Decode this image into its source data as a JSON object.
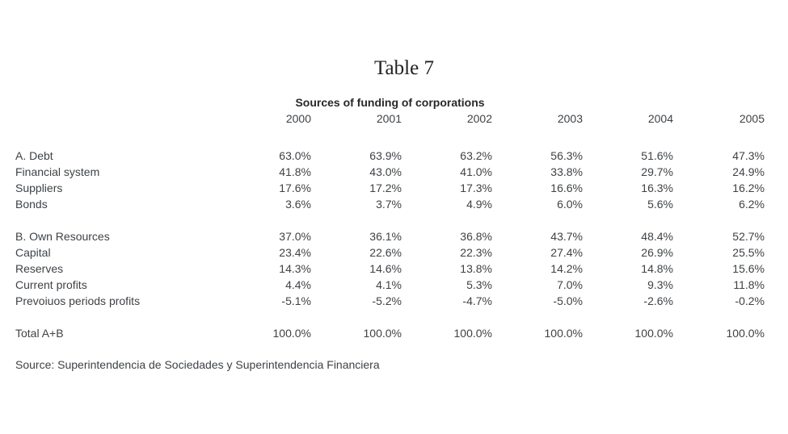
{
  "document": {
    "title": "Table 7",
    "source": "Source: Superintendencia de Sociedades y Superintendencia Financiera"
  },
  "chart_data": {
    "type": "table",
    "title": "Sources of funding of corporations",
    "columns": [
      "2000",
      "2001",
      "2002",
      "2003",
      "2004",
      "2005"
    ],
    "sections": [
      {
        "rows": [
          {
            "label": "A. Debt",
            "indent": 0,
            "values": [
              "63.0%",
              "63.9%",
              "63.2%",
              "56.3%",
              "51.6%",
              "47.3%"
            ]
          },
          {
            "label": "Financial system",
            "indent": 1,
            "values": [
              "41.8%",
              "43.0%",
              "41.0%",
              "33.8%",
              "29.7%",
              "24.9%"
            ]
          },
          {
            "label": "Suppliers",
            "indent": 1,
            "values": [
              "17.6%",
              "17.2%",
              "17.3%",
              "16.6%",
              "16.3%",
              "16.2%"
            ]
          },
          {
            "label": "Bonds",
            "indent": 1,
            "values": [
              "3.6%",
              "3.7%",
              "4.9%",
              "6.0%",
              "5.6%",
              "6.2%"
            ]
          }
        ]
      },
      {
        "rows": [
          {
            "label": "B. Own Resources",
            "indent": 0,
            "values": [
              "37.0%",
              "36.1%",
              "36.8%",
              "43.7%",
              "48.4%",
              "52.7%"
            ]
          },
          {
            "label": "Capital",
            "indent": 1,
            "values": [
              "23.4%",
              "22.6%",
              "22.3%",
              "27.4%",
              "26.9%",
              "25.5%"
            ]
          },
          {
            "label": "Reserves",
            "indent": 1,
            "values": [
              "14.3%",
              "14.6%",
              "13.8%",
              "14.2%",
              "14.8%",
              "15.6%"
            ]
          },
          {
            "label": "Current profits",
            "indent": 1,
            "values": [
              "4.4%",
              "4.1%",
              "5.3%",
              "7.0%",
              "9.3%",
              "11.8%"
            ]
          },
          {
            "label": "Prevoiuos periods profits",
            "indent": 1,
            "values": [
              "-5.1%",
              "-5.2%",
              "-4.7%",
              "-5.0%",
              "-2.6%",
              "-0.2%"
            ]
          }
        ]
      },
      {
        "rows": [
          {
            "label": "Total A+B",
            "indent": 0,
            "values": [
              "100.0%",
              "100.0%",
              "100.0%",
              "100.0%",
              "100.0%",
              "100.0%"
            ]
          }
        ]
      }
    ]
  }
}
